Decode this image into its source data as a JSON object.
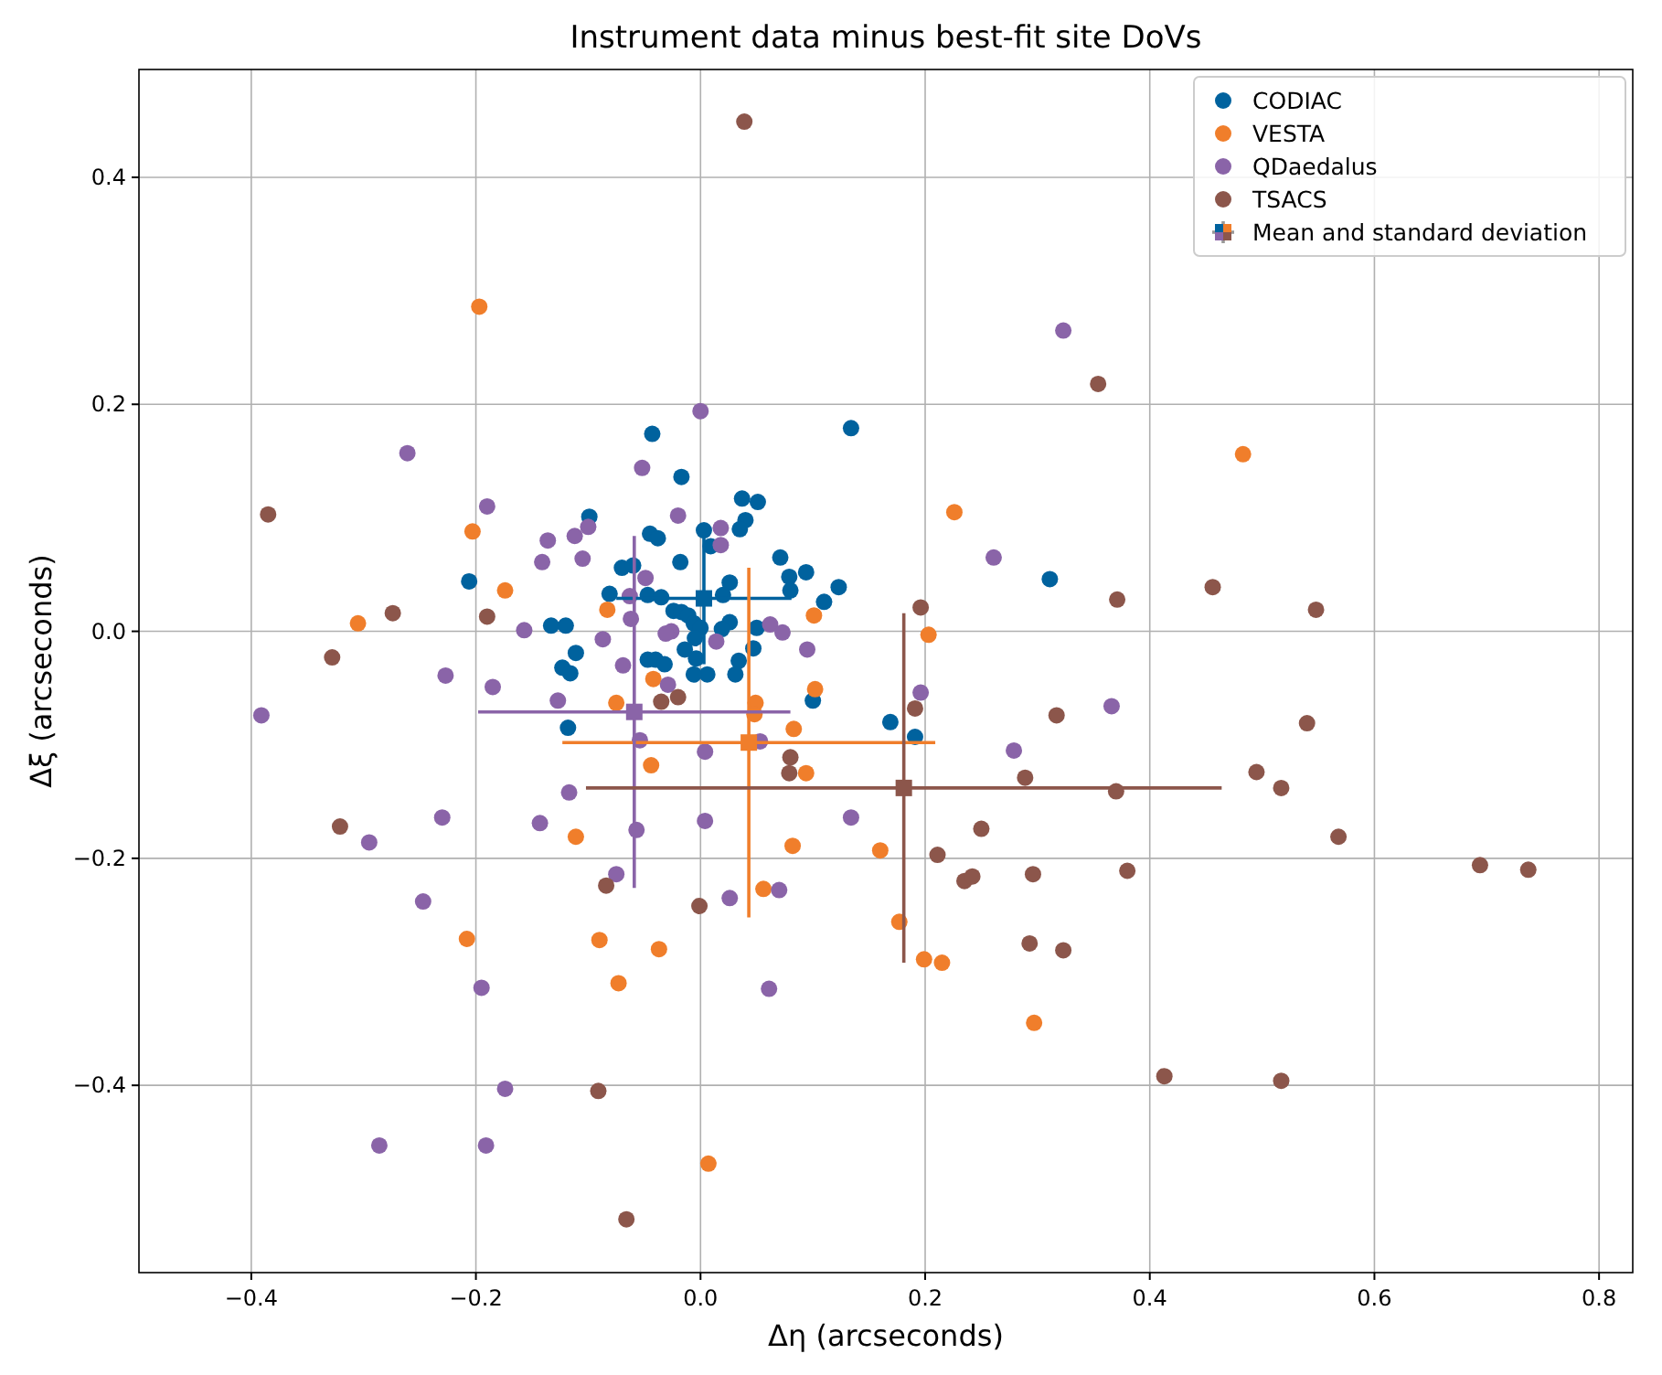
{
  "chart_data": {
    "type": "scatter",
    "title": "Instrument data minus best-fit site DoVs",
    "xlabel": "Δη (arcseconds)",
    "ylabel": "Δξ (arcseconds)",
    "xlim": [
      -0.5,
      0.83
    ],
    "ylim": [
      -0.565,
      0.495
    ],
    "xticks": [
      {
        "value": -0.4,
        "label": "−0.4"
      },
      {
        "value": -0.2,
        "label": "−0.2"
      },
      {
        "value": 0,
        "label": "0.0"
      },
      0.2,
      0.4,
      0.6,
      0.8
    ],
    "yticks": [
      {
        "value": -0.4,
        "label": "−0.4"
      },
      {
        "value": -0.2,
        "label": "−0.2"
      },
      {
        "value": 0,
        "label": "0.0"
      },
      0.2,
      0.4
    ],
    "grid": true,
    "legend": "top right",
    "marker": "circle",
    "series": [
      {
        "name": "CODIAC",
        "color": "#00629e",
        "x": [
          -0.043,
          -0.017,
          0.134,
          0.037,
          0.051,
          0.04,
          0.035,
          0.003,
          0.009,
          -0.099,
          -0.045,
          -0.038,
          -0.018,
          0.071,
          0.094,
          0.079,
          0.08,
          0.123,
          0.11,
          0.026,
          0.02,
          -0.07,
          -0.06,
          -0.081,
          -0.047,
          -0.035,
          -0.206,
          -0.024,
          -0.017,
          -0.011,
          -0.006,
          0,
          0.026,
          0.019,
          0.05,
          -0.133,
          -0.12,
          -0.111,
          -0.004,
          0.006,
          -0.006,
          0.047,
          0.034,
          0.031,
          -0.047,
          -0.04,
          -0.032,
          -0.014,
          -0.123,
          -0.116,
          0.1,
          -0.118,
          0.169,
          0.191,
          0.311,
          -0.005
        ],
        "values": [
          0.174,
          0.136,
          0.179,
          0.117,
          0.114,
          0.098,
          0.09,
          0.089,
          0.075,
          0.101,
          0.086,
          0.082,
          0.061,
          0.065,
          0.052,
          0.048,
          0.036,
          0.039,
          0.026,
          0.043,
          0.032,
          0.056,
          0.058,
          0.033,
          0.032,
          0.03,
          0.044,
          0.018,
          0.017,
          0.014,
          0.007,
          0.003,
          0.008,
          0.002,
          0.003,
          0.005,
          0.005,
          -0.019,
          -0.024,
          -0.038,
          -0.038,
          -0.015,
          -0.026,
          -0.038,
          -0.025,
          -0.025,
          -0.029,
          -0.016,
          -0.032,
          -0.037,
          -0.061,
          -0.085,
          -0.08,
          -0.093,
          0.046,
          -0.006
        ]
      },
      {
        "name": "VESTA",
        "color": "#f07e2b",
        "x": [
          -0.197,
          0.483,
          0.226,
          -0.203,
          -0.174,
          -0.305,
          -0.083,
          0.101,
          0.203,
          -0.042,
          -0.075,
          0.049,
          0.048,
          0.102,
          0.083,
          -0.044,
          0.094,
          -0.111,
          0.082,
          0.16,
          0.056,
          -0.208,
          -0.09,
          -0.037,
          0.177,
          0.199,
          0.215,
          -0.073,
          0.297,
          0.007
        ],
        "values": [
          0.286,
          0.156,
          0.105,
          0.088,
          0.036,
          0.007,
          0.019,
          0.014,
          -0.003,
          -0.042,
          -0.063,
          -0.063,
          -0.073,
          -0.051,
          -0.086,
          -0.118,
          -0.125,
          -0.181,
          -0.189,
          -0.193,
          -0.227,
          -0.271,
          -0.272,
          -0.28,
          -0.256,
          -0.289,
          -0.292,
          -0.31,
          -0.345,
          -0.469
        ]
      },
      {
        "name": "QDaedalus",
        "color": "#8a64a8",
        "x": [
          0,
          0.323,
          -0.261,
          -0.052,
          -0.19,
          -0.02,
          -0.1,
          -0.112,
          -0.136,
          -0.141,
          -0.105,
          0.018,
          0.018,
          0.261,
          -0.049,
          -0.063,
          -0.157,
          -0.062,
          -0.026,
          -0.031,
          0.014,
          0.062,
          0.073,
          0.095,
          -0.087,
          -0.069,
          -0.029,
          -0.185,
          -0.227,
          -0.127,
          -0.391,
          0.196,
          0.366,
          0.053,
          -0.054,
          0.004,
          0.279,
          -0.117,
          -0.143,
          -0.057,
          0.004,
          0.134,
          -0.23,
          -0.295,
          -0.075,
          -0.247,
          0.026,
          0.07,
          -0.195,
          0.061,
          -0.174,
          -0.286,
          -0.191
        ],
        "values": [
          0.194,
          0.265,
          0.157,
          0.144,
          0.11,
          0.102,
          0.092,
          0.084,
          0.08,
          0.061,
          0.064,
          0.091,
          0.076,
          0.065,
          0.047,
          0.031,
          0.001,
          0.011,
          0,
          -0.002,
          -0.009,
          0.006,
          -0.001,
          -0.016,
          -0.007,
          -0.03,
          -0.047,
          -0.049,
          -0.039,
          -0.061,
          -0.074,
          -0.054,
          -0.066,
          -0.097,
          -0.096,
          -0.106,
          -0.105,
          -0.142,
          -0.169,
          -0.175,
          -0.167,
          -0.164,
          -0.164,
          -0.186,
          -0.214,
          -0.238,
          -0.235,
          -0.228,
          -0.314,
          -0.315,
          -0.403,
          -0.453,
          -0.453
        ]
      },
      {
        "name": "TSACS",
        "color": "#8c564b",
        "x": [
          0.039,
          0.354,
          -0.385,
          0.456,
          0.371,
          0.548,
          0.196,
          -0.274,
          -0.19,
          -0.328,
          -0.02,
          -0.035,
          0.317,
          0.191,
          0.54,
          0.08,
          0.079,
          0.289,
          0.495,
          0.517,
          0.37,
          0.568,
          -0.321,
          0.25,
          0.211,
          0.235,
          0.242,
          0.296,
          0.38,
          0.694,
          0.737,
          -0.084,
          -0.001,
          0.293,
          0.323,
          0.413,
          0.517,
          -0.091,
          -0.066
        ],
        "values": [
          0.449,
          0.218,
          0.103,
          0.039,
          0.028,
          0.019,
          0.021,
          0.016,
          0.013,
          -0.023,
          -0.058,
          -0.062,
          -0.074,
          -0.068,
          -0.081,
          -0.111,
          -0.125,
          -0.129,
          -0.124,
          -0.138,
          -0.141,
          -0.181,
          -0.172,
          -0.174,
          -0.197,
          -0.22,
          -0.216,
          -0.214,
          -0.211,
          -0.206,
          -0.21,
          -0.224,
          -0.242,
          -0.275,
          -0.281,
          -0.392,
          -0.396,
          -0.405,
          -0.518
        ]
      },
      {
        "name": "Mean and standard deviation",
        "color": "#999999",
        "marker": "square",
        "colors": [
          "#00629e",
          "#f07e2b",
          "#8a64a8",
          "#8c564b"
        ],
        "x": [
          0.003,
          0.043,
          -0.059,
          0.181
        ],
        "values": [
          0.029,
          -0.098,
          -0.071,
          -0.138
        ],
        "errors": [
          0.058,
          0.154,
          0.155,
          0.154
        ],
        "xerrors": [
          0.078,
          0.166,
          0.139,
          0.283
        ]
      }
    ]
  }
}
